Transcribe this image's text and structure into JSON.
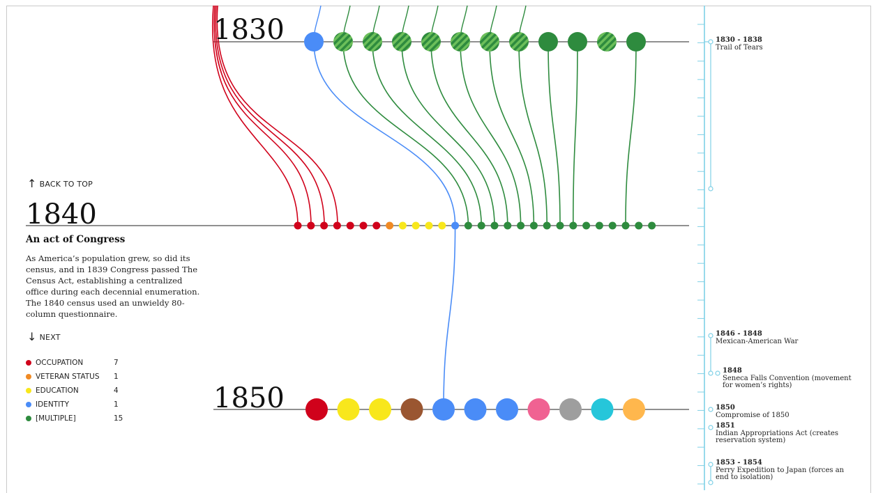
{
  "decades": [
    {
      "year": "1830"
    },
    {
      "year": "1840"
    },
    {
      "year": "1850"
    }
  ],
  "navigation": {
    "back_to_top": "BACK TO TOP",
    "next": "NEXT"
  },
  "section": {
    "title": "An act of Congress",
    "body": "As America’s population grew, so did its census, and in 1839 Congress passed The Census Act, establishing a centralized office during each decennial enumeration. The 1840 census used an unwieldy 80-column questionnaire."
  },
  "legend": [
    {
      "name": "OCCUPATION",
      "count": "7",
      "color": "#d0021b"
    },
    {
      "name": "VETERAN STATUS",
      "count": "1",
      "color": "#f08a24"
    },
    {
      "name": "EDUCATION",
      "count": "4",
      "color": "#f8e71c"
    },
    {
      "name": "IDENTITY",
      "count": "1",
      "color": "#4a8cf7"
    },
    {
      "name": "[MULTIPLE]",
      "count": "15",
      "color": "#2e8b3e"
    }
  ],
  "colors": {
    "occupation": "#d0021b",
    "veteran": "#f08a24",
    "education": "#f8e71c",
    "identity": "#4a8cf7",
    "multiple": "#2e8b3e",
    "multiple_light": "#6cbf5a",
    "brown": "#9a5631",
    "pink": "#f06292",
    "gray": "#9e9e9e",
    "cyan": "#26c6da",
    "peach": "#ffb74d",
    "timeline": "#7fd0e6"
  },
  "rows": {
    "r1830": [
      "identity",
      "multiple-striped",
      "multiple-striped",
      "multiple-striped",
      "multiple-striped",
      "multiple-striped",
      "multiple-striped",
      "multiple-striped",
      "multiple",
      "multiple",
      "multiple-striped",
      "multiple"
    ],
    "r1840": [
      "occupation",
      "occupation",
      "occupation",
      "occupation",
      "occupation",
      "occupation",
      "occupation",
      "veteran",
      "education",
      "education",
      "education",
      "education",
      "identity",
      "multiple",
      "multiple",
      "multiple",
      "multiple",
      "multiple",
      "multiple",
      "multiple",
      "multiple",
      "multiple",
      "multiple",
      "multiple",
      "multiple",
      "multiple",
      "multiple",
      "multiple"
    ],
    "r1850": [
      "occupation",
      "education",
      "education",
      "brown",
      "identity",
      "identity",
      "identity",
      "pink",
      "gray",
      "cyan",
      "peach"
    ]
  },
  "events": [
    {
      "date": "1830 - 1838",
      "title": "Trail of Tears"
    },
    {
      "date": "1846 - 1848",
      "title": "Mexican-American War"
    },
    {
      "date": "1848",
      "title": "Seneca Falls Convention (movement for women’s rights)"
    },
    {
      "date": "1850",
      "title": "Compromise of 1850"
    },
    {
      "date": "1851",
      "title": "Indian Appropriations Act (creates reservation system)"
    },
    {
      "date": "1853 - 1854",
      "title": "Perry Expedition to Japan (forces an end to isolation)"
    }
  ]
}
